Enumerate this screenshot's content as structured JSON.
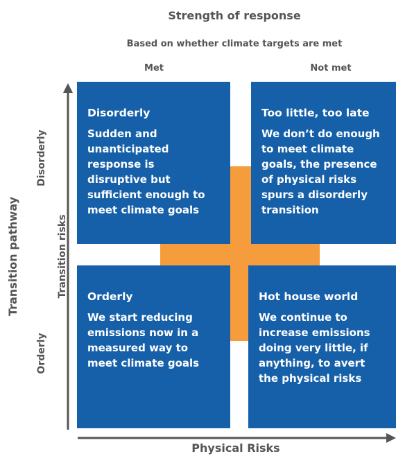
{
  "header": {
    "title": "Strength of response",
    "subtitle": "Based on whether climate targets are met",
    "columns": [
      "Met",
      "Not met"
    ]
  },
  "axes": {
    "y_outer": "Transition pathway",
    "y_inner": "Transition risks",
    "y_top": "Disorderly",
    "y_bottom": "Orderly",
    "x": "Physical Risks"
  },
  "quadrants": [
    {
      "heading": "Disorderly",
      "lines": [
        "Sudden and",
        "unanticipated",
        "response is",
        "disruptive but",
        "sufficient enough to",
        "meet climate goals"
      ]
    },
    {
      "heading": "Too little, too late",
      "lines": [
        "We don’t do enough",
        "to meet climate",
        "goals, the presence",
        "of physical risks",
        "spurs a disorderly",
        "transition"
      ]
    },
    {
      "heading": "Orderly",
      "lines": [
        "We start reducing",
        "emissions now in a",
        "measured way to",
        "meet climate goals"
      ]
    },
    {
      "heading": "Hot house world",
      "lines": [
        "We continue to",
        "increase emissions",
        "doing very little, if",
        "anything, to avert",
        "the physical risks"
      ]
    }
  ]
}
